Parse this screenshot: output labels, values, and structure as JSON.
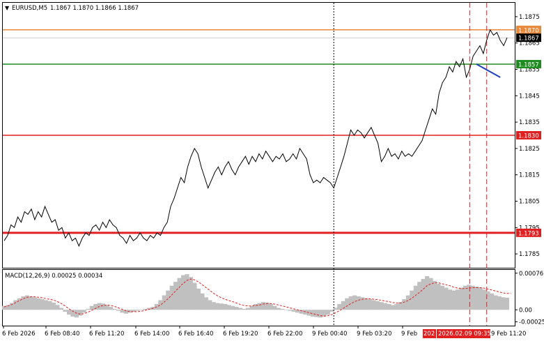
{
  "chart_data": {
    "type": "line",
    "header": {
      "symbol_label": "EURUSD,M5",
      "ohlc_text": "1.1867 1.1870 1.1866 1.1867"
    },
    "price_axis": {
      "ylim": [
        1.178,
        1.188
      ],
      "ticks": [
        "1.1875",
        "1.1865",
        "1.1855",
        "1.1845",
        "1.1835",
        "1.1825",
        "1.1815",
        "1.1805",
        "1.1795",
        "1.1785"
      ]
    },
    "time_axis": {
      "ticks": [
        "6 Feb 2026",
        "6 Feb 08:40",
        "6 Feb 11:20",
        "6 Feb 14:00",
        "6 Feb 16:40",
        "6 Feb 19:20",
        "6 Feb 22:00",
        "9 Feb 00:40",
        "9 Feb 03:20",
        "9 Feb"
      ],
      "highlight_label": "2026.02.09 09:35",
      "highlight_left_fragment": "202",
      "last_label": "9 Feb 11:20"
    },
    "levels": [
      {
        "name": "resistance",
        "price": 1.187,
        "label": "1.1870",
        "color": "#e8883a"
      },
      {
        "name": "current",
        "price": 1.1867,
        "label": "1.1867",
        "color": "#000000"
      },
      {
        "name": "target",
        "price": 1.1857,
        "label": "1.1857",
        "color": "#1e8c1e"
      },
      {
        "name": "sell-level",
        "price": 1.183,
        "label": "1.1830",
        "color": "#e02020"
      },
      {
        "name": "support",
        "price": 1.1793,
        "label": "1.1793",
        "color": "#e02020"
      }
    ],
    "price_series": {
      "name": "EURUSD",
      "values": [
        1.179,
        1.1792,
        1.1796,
        1.1795,
        1.1799,
        1.1797,
        1.1801,
        1.18,
        1.1802,
        1.1798,
        1.1801,
        1.1799,
        1.1803,
        1.18,
        1.1797,
        1.1798,
        1.1794,
        1.1795,
        1.1791,
        1.1793,
        1.179,
        1.1791,
        1.1788,
        1.1791,
        1.1793,
        1.1792,
        1.1795,
        1.1796,
        1.1794,
        1.1797,
        1.1795,
        1.1798,
        1.1796,
        1.1795,
        1.1792,
        1.1791,
        1.1789,
        1.1792,
        1.179,
        1.1791,
        1.1793,
        1.1791,
        1.179,
        1.1792,
        1.1791,
        1.1793,
        1.1792,
        1.1795,
        1.1797,
        1.1803,
        1.1806,
        1.181,
        1.1814,
        1.1812,
        1.1818,
        1.1822,
        1.1825,
        1.1823,
        1.1818,
        1.1814,
        1.181,
        1.1813,
        1.1816,
        1.1818,
        1.1815,
        1.1818,
        1.182,
        1.1817,
        1.1815,
        1.1818,
        1.182,
        1.1822,
        1.1819,
        1.1822,
        1.182,
        1.1823,
        1.1821,
        1.1824,
        1.1822,
        1.182,
        1.1822,
        1.1821,
        1.1823,
        1.182,
        1.1821,
        1.1823,
        1.1821,
        1.1825,
        1.1823,
        1.1821,
        1.1815,
        1.1812,
        1.1813,
        1.1812,
        1.1814,
        1.1813,
        1.1812,
        1.181,
        1.1814,
        1.1818,
        1.1822,
        1.1827,
        1.1832,
        1.183,
        1.1832,
        1.1831,
        1.1829,
        1.1831,
        1.1833,
        1.183,
        1.1827,
        1.182,
        1.1822,
        1.1825,
        1.1822,
        1.1823,
        1.1821,
        1.1824,
        1.1822,
        1.1823,
        1.1822,
        1.1824,
        1.1826,
        1.1828,
        1.1832,
        1.1836,
        1.184,
        1.1838,
        1.1846,
        1.185,
        1.1852,
        1.1856,
        1.1854,
        1.1858,
        1.1856,
        1.1859,
        1.1852,
        1.1855,
        1.186,
        1.1862,
        1.1864,
        1.1861,
        1.1866,
        1.187,
        1.1868,
        1.1869,
        1.1866,
        1.1864,
        1.1867
      ]
    },
    "trend_line": {
      "from_index": 139,
      "from_price": 1.1857,
      "to_index": 146,
      "to_price": 1.1852
    },
    "vertical_markers": [
      {
        "index": 97,
        "style": "dotted",
        "color": "#000000"
      },
      {
        "index": 137,
        "style": "dashed",
        "color": "#e02020"
      },
      {
        "index": 142,
        "style": "dashed",
        "color": "#e02020"
      }
    ],
    "macd": {
      "label": "MACD(12,26,9) 0.00025 0.00034",
      "ylim": [
        -0.0003,
        0.0008
      ],
      "ticks": [
        "0.00076",
        "0.00",
        "-0.00025"
      ],
      "histogram": [
        8e-05,
        0.0001,
        0.00014,
        0.0002,
        0.00024,
        0.00028,
        0.0003,
        0.00028,
        0.00026,
        0.00024,
        0.00022,
        0.0002,
        0.00018,
        0.00015,
        0.0001,
        4e-05,
        -4e-05,
        -0.0001,
        -0.00014,
        -0.00016,
        -0.00012,
        -6e-05,
        2e-05,
        8e-05,
        0.00012,
        0.00014,
        0.00013,
        0.0001,
        6e-05,
        2e-05,
        -2e-05,
        -6e-05,
        -8e-05,
        -6e-05,
        -4e-05,
        -2e-05,
        0.0,
        2e-05,
        4e-05,
        6e-05,
        0.00012,
        0.0002,
        0.0003,
        0.0004,
        0.0005,
        0.00058,
        0.00066,
        0.00072,
        0.00074,
        0.00068,
        0.00056,
        0.00044,
        0.00034,
        0.00026,
        0.0002,
        0.00016,
        0.00014,
        0.00013,
        0.00012,
        0.0001,
        8e-05,
        6e-05,
        4e-05,
        2e-05,
        4e-05,
        8e-05,
        0.00012,
        0.00014,
        0.00016,
        0.00015,
        0.00012,
        8e-05,
        4e-05,
        2e-05,
        0.0,
        -2e-05,
        -4e-05,
        -6e-05,
        -8e-05,
        -0.0001,
        -0.00012,
        -0.00014,
        -0.00015,
        -0.00016,
        -0.00014,
        -0.0001,
        -4e-05,
        4e-05,
        0.00012,
        0.00018,
        0.00024,
        0.00028,
        0.0003,
        0.00028,
        0.00026,
        0.00024,
        0.00022,
        0.0002,
        0.00018,
        0.00016,
        0.00014,
        0.00012,
        0.0001,
        0.00012,
        0.00016,
        0.00022,
        0.0003,
        0.0004,
        0.0005,
        0.00058,
        0.00064,
        0.0007,
        0.00066,
        0.0006,
        0.00054,
        0.0005,
        0.00046,
        0.00042,
        0.0004,
        0.00042,
        0.00046,
        0.0005,
        0.00052,
        0.0005,
        0.00048,
        0.00046,
        0.00042,
        0.00038,
        0.00034,
        0.0003,
        0.00028,
        0.00026,
        0.00025
      ],
      "signal": [
        6e-05,
        8e-05,
        0.00011,
        0.00015,
        0.00019,
        0.00023,
        0.00026,
        0.00027,
        0.00027,
        0.00026,
        0.00025,
        0.00023,
        0.00022,
        0.0002,
        0.00017,
        0.00013,
        8e-05,
        2e-05,
        -3e-05,
        -7e-05,
        -9e-05,
        -8e-05,
        -5e-05,
        -1e-05,
        3e-05,
        7e-05,
        9e-05,
        0.0001,
        9e-05,
        7e-05,
        4e-05,
        1e-05,
        -2e-05,
        -4e-05,
        -4e-05,
        -4e-05,
        -3e-05,
        -1e-05,
        1e-05,
        3e-05,
        6e-05,
        0.0001,
        0.00016,
        0.00023,
        0.00031,
        0.00039,
        0.00047,
        0.00055,
        0.00061,
        0.00064,
        0.00062,
        0.00058,
        0.00052,
        0.00046,
        0.0004,
        0.00034,
        0.00029,
        0.00025,
        0.00022,
        0.00019,
        0.00017,
        0.00014,
        0.00011,
        9e-05,
        8e-05,
        8e-05,
        9e-05,
        0.0001,
        0.00012,
        0.00013,
        0.00013,
        0.00012,
        0.0001,
        8e-05,
        6e-05,
        4e-05,
        2e-05,
        0.0,
        -2e-05,
        -4e-05,
        -6e-05,
        -8e-05,
        -0.0001,
        -0.00012,
        -0.00013,
        -0.00012,
        -0.0001,
        -6e-05,
        -2e-05,
        3e-05,
        8e-05,
        0.00013,
        0.00017,
        0.0002,
        0.00022,
        0.00023,
        0.00023,
        0.00022,
        0.00021,
        0.0002,
        0.00018,
        0.00017,
        0.00015,
        0.00014,
        0.00014,
        0.00016,
        0.00019,
        0.00024,
        0.0003,
        0.00036,
        0.00043,
        0.0005,
        0.00054,
        0.00056,
        0.00056,
        0.00054,
        0.00052,
        0.0005,
        0.00047,
        0.00045,
        0.00044,
        0.00044,
        0.00045,
        0.00046,
        0.00046,
        0.00046,
        0.00045,
        0.00043,
        0.00041,
        0.00039,
        0.00037,
        0.00035,
        0.00034,
        0.00034
      ],
      "histogram_color": "#c0c0c0",
      "signal_color": "#e02020"
    },
    "grid": false,
    "colors": {
      "price_line": "#000000",
      "trend_line": "#1f3fbf",
      "highlight_label_bg": "#e02020",
      "axis_text": "#000000"
    }
  }
}
